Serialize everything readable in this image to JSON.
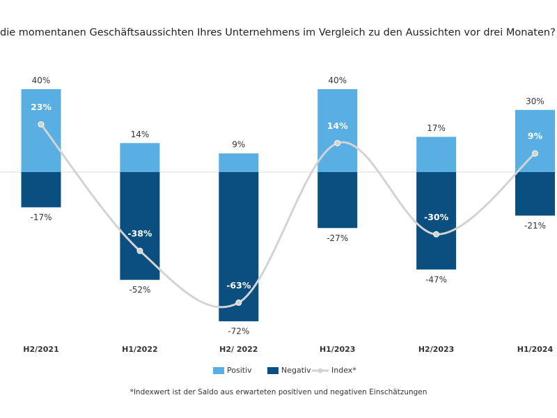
{
  "chart_data": {
    "type": "bar-line",
    "title": "die momentanen Geschäftsaussichten Ihres Unternehmens im Vergleich zu den Aussichten vor drei Monaten?",
    "categories": [
      "H2/2021",
      "H1/2022",
      "H2/ 2022",
      "H1/2023",
      "H2/2023",
      "H1/2024"
    ],
    "series": [
      {
        "name": "Positiv",
        "type": "bar",
        "color": "#5aafe2",
        "values": [
          40,
          14,
          9,
          40,
          17,
          30
        ],
        "value_labels": [
          "40%",
          "14%",
          "9%",
          "40%",
          "17%",
          "30%"
        ]
      },
      {
        "name": "Negativ",
        "type": "bar",
        "color": "#0a4f80",
        "values": [
          -17,
          -52,
          -72,
          -27,
          -47,
          -21
        ],
        "value_labels": [
          "-17%",
          "-52%",
          "-72%",
          "-27%",
          "-47%",
          "-21%"
        ]
      },
      {
        "name": "Index*",
        "type": "line",
        "color": "#d3d3d3",
        "values": [
          23,
          -38,
          -63,
          14,
          -30,
          9
        ],
        "value_labels": [
          "23%",
          "-38%",
          "-63%",
          "14%",
          "-30%",
          "9%"
        ]
      }
    ],
    "footnote": "*Indexwert ist der Saldo aus erwarteten positiven und negativen Einschätzungen"
  }
}
